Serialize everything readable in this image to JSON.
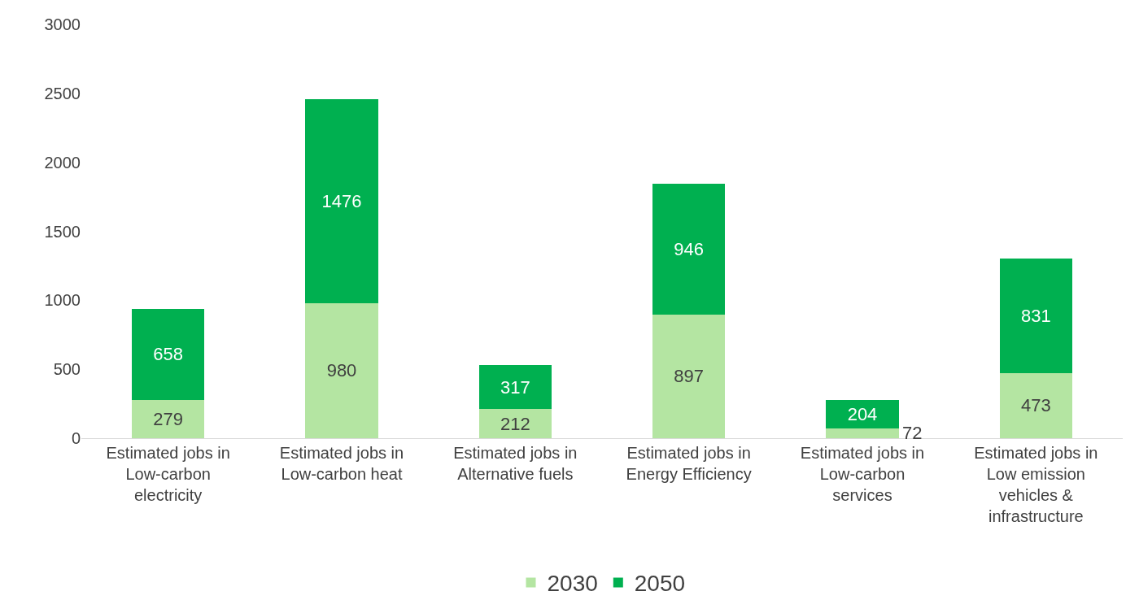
{
  "chart_data": {
    "type": "bar",
    "stacked": true,
    "categories": [
      "Estimated jobs in Low-carbon electricity",
      "Estimated jobs in Low-carbon heat",
      "Estimated jobs in Alternative fuels",
      "Estimated jobs in Energy Efficiency",
      "Estimated jobs in Low-carbon services",
      "Estimated jobs in Low emission vehicles & infrastructure"
    ],
    "series": [
      {
        "name": "2030",
        "color": "#b4e5a2",
        "values": [
          279,
          980,
          212,
          897,
          72,
          473
        ]
      },
      {
        "name": "2050",
        "color": "#00b050",
        "values": [
          658,
          1476,
          317,
          946,
          204,
          831
        ]
      }
    ],
    "ylim": [
      0,
      3000
    ],
    "yticks": [
      0,
      500,
      1000,
      1500,
      2000,
      2500,
      3000
    ],
    "grid": false,
    "legend": "bottom",
    "data_labels": true
  }
}
